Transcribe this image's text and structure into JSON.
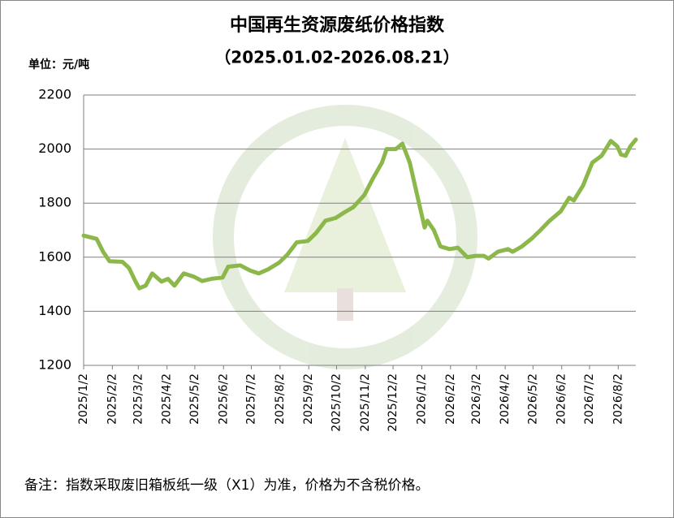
{
  "chart_data": {
    "type": "line",
    "title": "中国再生资源废纸价格指数",
    "subtitle": "（2025.01.02-2026.08.21）",
    "y_unit": "单位：元/吨",
    "note": "备注：指数采取废旧箱板纸一级（X1）为准，价格为不含税价格。",
    "color": "#8cb84b",
    "x": [
      "2025/1/2",
      "2025/1/16",
      "2025/1/23",
      "2025/1/30",
      "2025/2/13",
      "2025/2/20",
      "2025/2/27",
      "2025/3/3",
      "2025/3/10",
      "2025/3/17",
      "2025/3/27",
      "2025/4/3",
      "2025/4/10",
      "2025/4/20",
      "2025/5/1",
      "2025/5/10",
      "2025/5/20",
      "2025/6/1",
      "2025/6/7",
      "2025/6/20",
      "2025/7/1",
      "2025/7/10",
      "2025/7/20",
      "2025/8/1",
      "2025/8/10",
      "2025/8/20",
      "2025/9/1",
      "2025/9/10",
      "2025/9/20",
      "2025/10/1",
      "2025/10/10",
      "2025/10/20",
      "2025/11/1",
      "2025/11/10",
      "2025/11/20",
      "2025/11/25",
      "2025/12/5",
      "2025/12/12",
      "2025/12/20",
      "2025/12/28",
      "2026/1/5",
      "2026/1/8",
      "2026/1/15",
      "2026/1/22",
      "2026/2/1",
      "2026/2/10",
      "2026/2/20",
      "2026/3/1",
      "2026/3/10",
      "2026/3/15",
      "2026/3/25",
      "2026/4/5",
      "2026/4/10",
      "2026/4/20",
      "2026/5/1",
      "2026/5/10",
      "2026/5/20",
      "2026/6/1",
      "2026/6/10",
      "2026/6/15",
      "2026/6/25",
      "2026/7/5",
      "2026/7/15",
      "2026/7/25",
      "2026/8/1",
      "2026/8/5",
      "2026/8/10",
      "2026/8/15",
      "2026/8/21"
    ],
    "values": [
      1680,
      1668,
      1620,
      1585,
      1583,
      1560,
      1510,
      1485,
      1495,
      1540,
      1510,
      1520,
      1495,
      1540,
      1528,
      1512,
      1520,
      1525,
      1565,
      1570,
      1550,
      1540,
      1555,
      1580,
      1610,
      1655,
      1660,
      1690,
      1735,
      1745,
      1765,
      1785,
      1830,
      1890,
      1950,
      2000,
      2000,
      2020,
      1950,
      1830,
      1710,
      1735,
      1700,
      1640,
      1630,
      1635,
      1600,
      1605,
      1605,
      1595,
      1620,
      1630,
      1620,
      1640,
      1670,
      1700,
      1735,
      1770,
      1820,
      1810,
      1865,
      1950,
      1975,
      2030,
      2010,
      1980,
      1975,
      2010,
      2035
    ],
    "xlim": [
      "2025/1/2",
      "2026/8/21"
    ],
    "xticks": [
      "2025/1/2",
      "2025/2/2",
      "2025/3/2",
      "2025/4/2",
      "2025/5/2",
      "2025/6/2",
      "2025/7/2",
      "2025/8/2",
      "2025/9/2",
      "2025/10/2",
      "2025/11/2",
      "2025/12/2",
      "2026/1/2",
      "2026/2/2",
      "2026/3/2",
      "2026/4/2",
      "2026/5/2",
      "2026/6/2",
      "2026/7/2",
      "2026/8/2"
    ],
    "ylim": [
      1200,
      2200
    ],
    "yticks": [
      1200,
      1400,
      1600,
      1800,
      2000,
      2200
    ],
    "grid": true
  }
}
